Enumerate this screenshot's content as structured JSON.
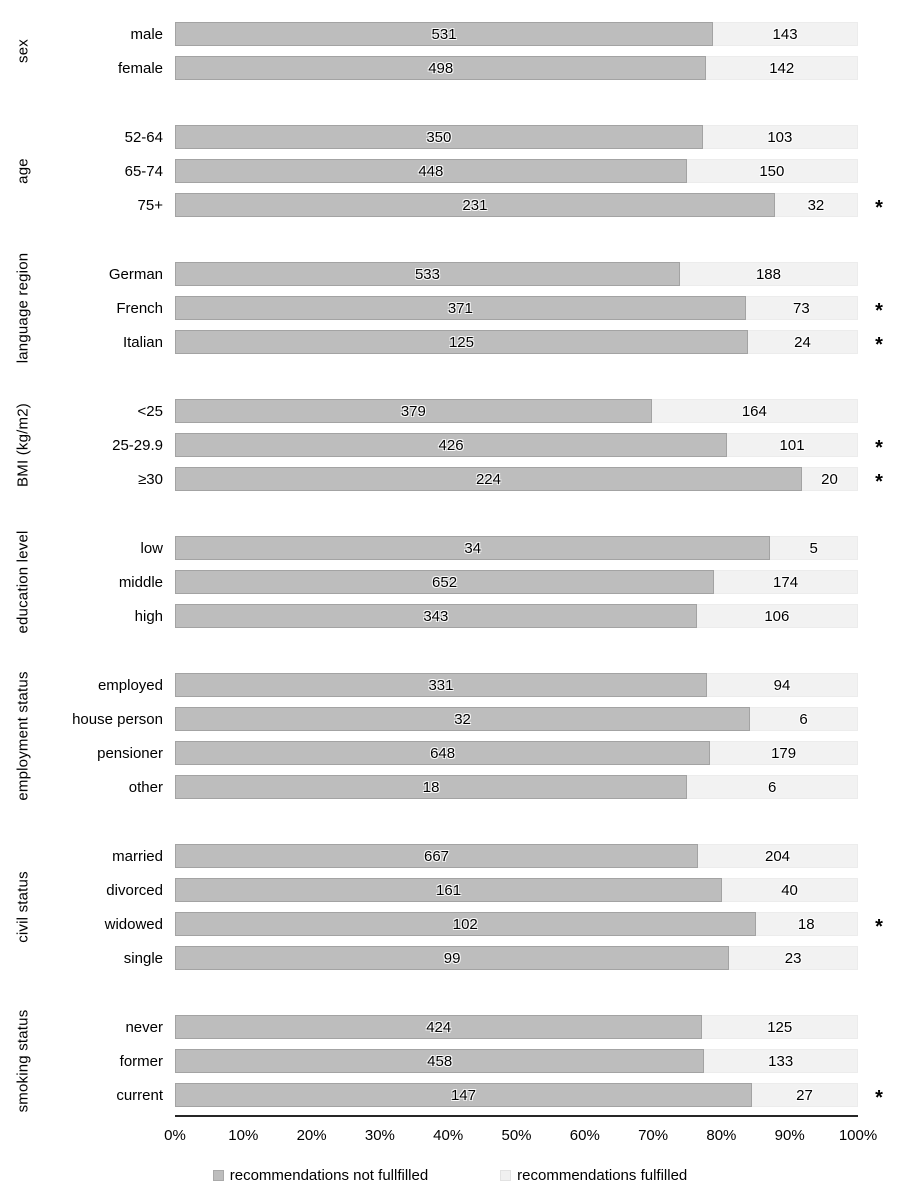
{
  "chart_data": {
    "type": "bar",
    "variant": "horizontal-stacked-100percent",
    "title": "",
    "xlabel": "",
    "ylabel": "",
    "x_axis": {
      "ticks": [
        "0%",
        "10%",
        "20%",
        "30%",
        "40%",
        "50%",
        "60%",
        "70%",
        "80%",
        "90%",
        "100%"
      ],
      "range_percent": [
        0,
        100
      ],
      "grid": false
    },
    "legend": {
      "position": "bottom",
      "entries": [
        {
          "label": "recommendations not fullfilled",
          "color": "#bdbdbd"
        },
        {
          "label": "recommendations fulfilled",
          "color": "#f0f0f0"
        }
      ]
    },
    "significance_marker": "*",
    "groups": [
      {
        "label": "sex",
        "rows": [
          {
            "label": "male",
            "not_fulfilled": 531,
            "fulfilled": 143,
            "significant": false
          },
          {
            "label": "female",
            "not_fulfilled": 498,
            "fulfilled": 142,
            "significant": false
          }
        ]
      },
      {
        "label": "age",
        "rows": [
          {
            "label": "52-64",
            "not_fulfilled": 350,
            "fulfilled": 103,
            "significant": false
          },
          {
            "label": "65-74",
            "not_fulfilled": 448,
            "fulfilled": 150,
            "significant": false
          },
          {
            "label": "75+",
            "not_fulfilled": 231,
            "fulfilled": 32,
            "significant": true
          }
        ]
      },
      {
        "label": "language region",
        "rows": [
          {
            "label": "German",
            "not_fulfilled": 533,
            "fulfilled": 188,
            "significant": false
          },
          {
            "label": "French",
            "not_fulfilled": 371,
            "fulfilled": 73,
            "significant": true
          },
          {
            "label": "Italian",
            "not_fulfilled": 125,
            "fulfilled": 24,
            "significant": true
          }
        ]
      },
      {
        "label": "BMI (kg/m2)",
        "rows": [
          {
            "label": "<25",
            "not_fulfilled": 379,
            "fulfilled": 164,
            "significant": false
          },
          {
            "label": "25-29.9",
            "not_fulfilled": 426,
            "fulfilled": 101,
            "significant": true
          },
          {
            "label": "≥30",
            "not_fulfilled": 224,
            "fulfilled": 20,
            "significant": true
          }
        ]
      },
      {
        "label": "education level",
        "rows": [
          {
            "label": "low",
            "not_fulfilled": 34,
            "fulfilled": 5,
            "significant": false
          },
          {
            "label": "middle",
            "not_fulfilled": 652,
            "fulfilled": 174,
            "significant": false
          },
          {
            "label": "high",
            "not_fulfilled": 343,
            "fulfilled": 106,
            "significant": false
          }
        ]
      },
      {
        "label": "employment status",
        "rows": [
          {
            "label": "employed",
            "not_fulfilled": 331,
            "fulfilled": 94,
            "significant": false
          },
          {
            "label": "house person",
            "not_fulfilled": 32,
            "fulfilled": 6,
            "significant": false
          },
          {
            "label": "pensioner",
            "not_fulfilled": 648,
            "fulfilled": 179,
            "significant": false
          },
          {
            "label": "other",
            "not_fulfilled": 18,
            "fulfilled": 6,
            "significant": false
          }
        ]
      },
      {
        "label": "civil status",
        "rows": [
          {
            "label": "married",
            "not_fulfilled": 667,
            "fulfilled": 204,
            "significant": false
          },
          {
            "label": "divorced",
            "not_fulfilled": 161,
            "fulfilled": 40,
            "significant": false
          },
          {
            "label": "widowed",
            "not_fulfilled": 102,
            "fulfilled": 18,
            "significant": true
          },
          {
            "label": "single",
            "not_fulfilled": 99,
            "fulfilled": 23,
            "significant": false
          }
        ]
      },
      {
        "label": "smoking status",
        "rows": [
          {
            "label": "never",
            "not_fulfilled": 424,
            "fulfilled": 125,
            "significant": false
          },
          {
            "label": "former",
            "not_fulfilled": 458,
            "fulfilled": 133,
            "significant": false
          },
          {
            "label": "current",
            "not_fulfilled": 147,
            "fulfilled": 27,
            "significant": true
          }
        ]
      }
    ]
  },
  "colors": {
    "bar_not_fulfilled_fill": "#bdbdbd",
    "bar_not_fulfilled_border": "#a3a3a3",
    "bar_fulfilled_fill": "#f2f2f2",
    "bar_fulfilled_border": "#ececec",
    "axis_line": "#262626",
    "text": "#000000"
  }
}
